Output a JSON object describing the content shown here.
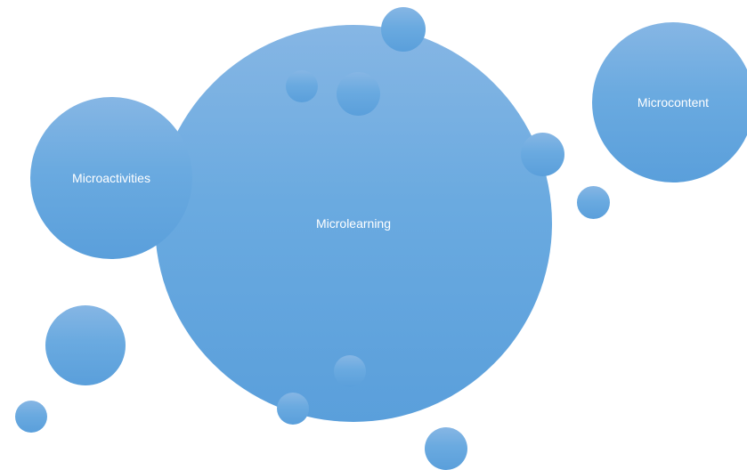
{
  "diagram": {
    "bubbles": {
      "main": {
        "label": "Microlearning"
      },
      "left": {
        "label": "Microactivities"
      },
      "right": {
        "label": "Microcontent"
      }
    },
    "colors": {
      "bubble_top": "#86b6e4",
      "bubble_bottom": "#5a9fdb",
      "label_text": "#ffffff",
      "background": "#ffffff"
    }
  }
}
